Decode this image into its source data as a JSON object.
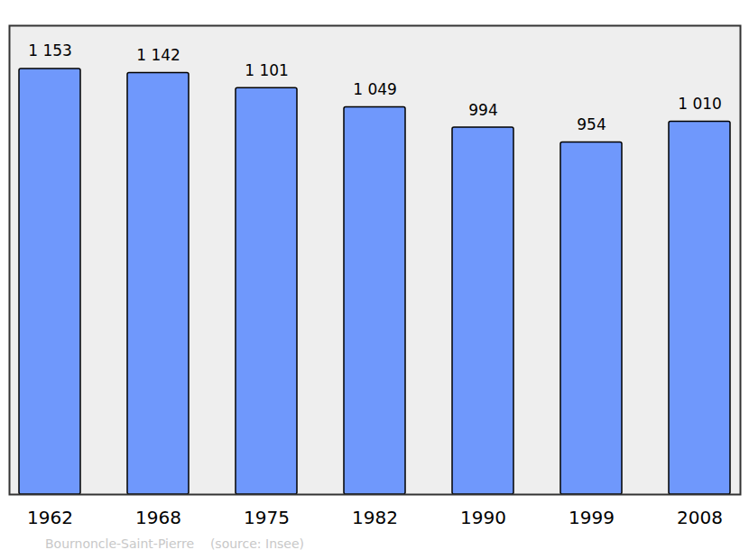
{
  "chart_data": {
    "type": "bar",
    "categories": [
      "1962",
      "1968",
      "1975",
      "1982",
      "1990",
      "1999",
      "2008"
    ],
    "values": [
      1153,
      1142,
      1101,
      1049,
      994,
      954,
      1010
    ],
    "value_labels": [
      "1 153",
      "1 142",
      "1 101",
      "1 049",
      "994",
      "954",
      "1 010"
    ],
    "color": "#6f98fc",
    "ylim": [
      0,
      1270
    ],
    "grid": false,
    "data_labels": true,
    "tick_labels": "x",
    "caption": "Bournoncle-Saint-Pierre    (source: Insee)"
  }
}
